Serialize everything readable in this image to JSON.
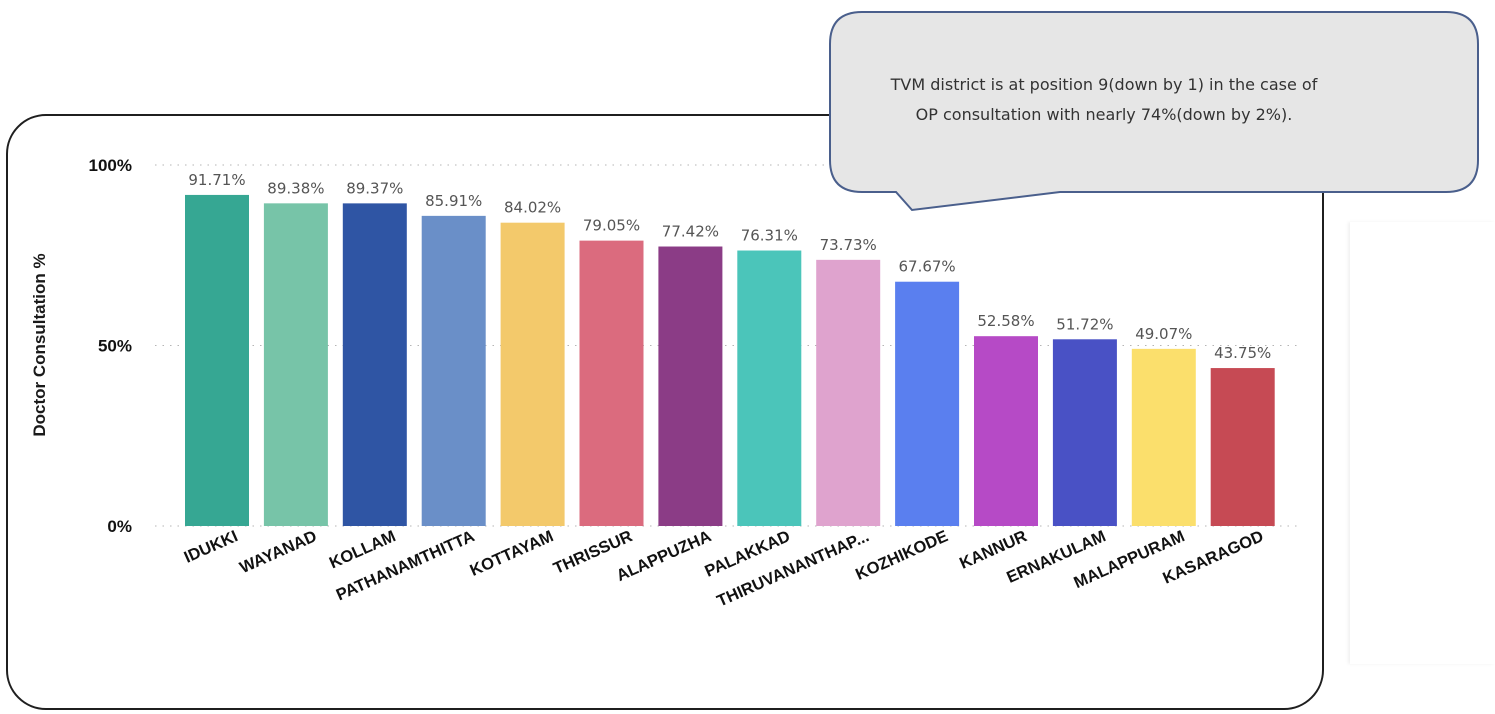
{
  "chart_data": {
    "type": "bar",
    "ylabel": "Doctor Consultation %",
    "xlabel": "",
    "ylim": [
      0,
      100
    ],
    "yticks": [
      {
        "value": 0,
        "label": "0%"
      },
      {
        "value": 50,
        "label": "50%"
      },
      {
        "value": 100,
        "label": "100%"
      }
    ],
    "grid": "horizontal dotted",
    "categories": [
      "IDUKKI",
      "WAYANAD",
      "KOLLAM",
      "PATHANAMTHITTA",
      "KOTTAYAM",
      "THRISSUR",
      "ALAPPUZHA",
      "PALAKKAD",
      "THIRUVANANTHAP...",
      "KOZHIKODE",
      "KANNUR",
      "ERNAKULAM",
      "MALAPPURAM",
      "KASARAGOD"
    ],
    "values": [
      91.71,
      89.38,
      89.37,
      85.91,
      84.02,
      79.05,
      77.42,
      76.31,
      73.73,
      67.67,
      52.58,
      51.72,
      49.07,
      43.75
    ],
    "data_labels": [
      "91.71%",
      "89.38%",
      "89.37%",
      "85.91%",
      "84.02%",
      "79.05%",
      "77.42%",
      "76.31%",
      "73.73%",
      "67.67%",
      "52.58%",
      "51.72%",
      "49.07%",
      "43.75%"
    ],
    "colors": [
      "#36A793",
      "#77C4A8",
      "#2F55A4",
      "#6A8FC8",
      "#F3C96B",
      "#DB6B7E",
      "#8B3C86",
      "#4BC5BA",
      "#DFA3CE",
      "#5A7FEF",
      "#B64AC6",
      "#4951C5",
      "#FBDF6C",
      "#C64A54"
    ]
  },
  "callout": {
    "line1": "TVM district is at position 9(down by 1) in the case of",
    "line2": "OP consultation with nearly 74%(down by 2%)."
  }
}
